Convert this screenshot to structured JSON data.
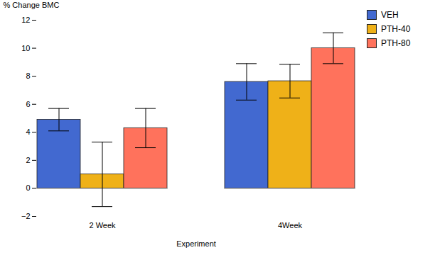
{
  "chart_data": {
    "type": "bar",
    "xlabel": "Experiment",
    "ylabel": "% Change BMC",
    "categories": [
      "2 Week",
      "4Week"
    ],
    "series": [
      {
        "name": "VEH",
        "values": [
          4.9,
          7.6
        ],
        "errors": [
          0.8,
          1.3
        ]
      },
      {
        "name": "PTH-40",
        "values": [
          1.0,
          7.65
        ],
        "errors": [
          2.3,
          1.2
        ]
      },
      {
        "name": "PTH-80",
        "values": [
          4.3,
          10.0
        ],
        "errors": [
          1.4,
          1.1
        ]
      }
    ],
    "ylim": [
      -2,
      12
    ],
    "yticks": [
      -2,
      0,
      2,
      4,
      6,
      8,
      10,
      12
    ],
    "grid": false,
    "legend": "right"
  }
}
